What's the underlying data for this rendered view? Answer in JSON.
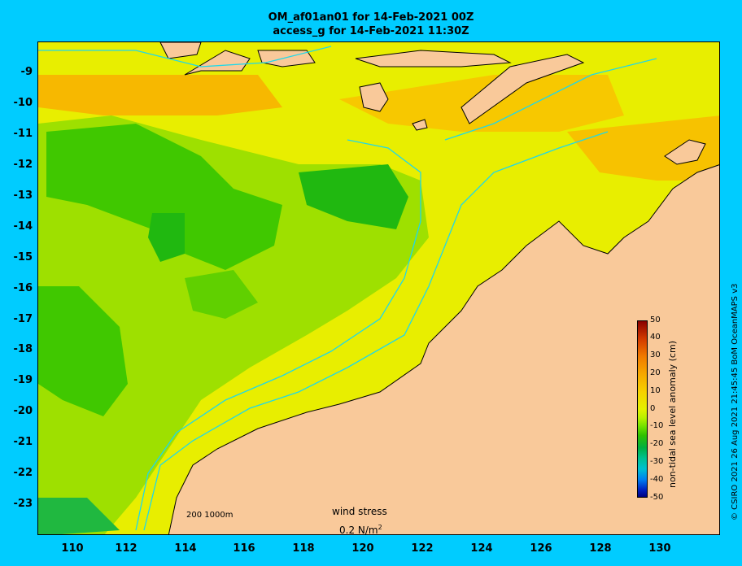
{
  "title_line1": "OM_af01an01 for 14-Feb-2021 00Z",
  "title_line2": "access_g for 14-Feb-2021 11:30Z",
  "y_ticks": [
    "-9",
    "-10",
    "-11",
    "-12",
    "-13",
    "-14",
    "-15",
    "-16",
    "-17",
    "-18",
    "-19",
    "-20",
    "-21",
    "-22",
    "-23"
  ],
  "x_ticks": [
    "110",
    "112",
    "114",
    "116",
    "118",
    "120",
    "122",
    "124",
    "126",
    "128",
    "130"
  ],
  "colorbar": {
    "label": "non-tidal sea level anomaly (cm)",
    "ticks": [
      "50",
      "40",
      "30",
      "20",
      "10",
      "0",
      "-10",
      "-20",
      "-30",
      "-40",
      "-50"
    ]
  },
  "wind": {
    "label": "wind stress",
    "value": "0.2 N/m",
    "superscript": "2"
  },
  "contour_legend": "200  1000m",
  "credit": "© CSIRO 2021  26 Aug 2021 21:45:45 BoM OceanMAPS v3",
  "colors": {
    "background": "#00ccff",
    "land": "#f9c99a",
    "contour": "#20d8e8"
  }
}
